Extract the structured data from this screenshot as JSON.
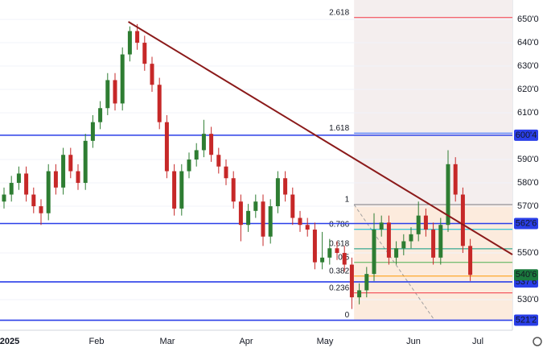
{
  "chart_data": {
    "type": "candlestick",
    "up_color": "#2e7d32",
    "down_color": "#c62828",
    "ylim": [
      516.9,
      658.3
    ],
    "yticks": [
      {
        "value": 530,
        "label": "530'0"
      },
      {
        "value": 550,
        "label": "550'0"
      },
      {
        "value": 570,
        "label": "570'0"
      },
      {
        "value": 580,
        "label": "580'0"
      },
      {
        "value": 590,
        "label": "590'0"
      },
      {
        "value": 610,
        "label": "610'0"
      },
      {
        "value": 620,
        "label": "620'0"
      },
      {
        "value": 630,
        "label": "630'0"
      },
      {
        "value": 640,
        "label": "640'0"
      },
      {
        "value": 650,
        "label": "650'0"
      }
    ],
    "x_labels": [
      "2025",
      "Feb",
      "Mar",
      "Apr",
      "May",
      "Jun",
      "Jul"
    ],
    "candles": [
      [
        572,
        578,
        569,
        575
      ],
      [
        575,
        583,
        572,
        580
      ],
      [
        580,
        587,
        577,
        584
      ],
      [
        584,
        587,
        572,
        575
      ],
      [
        575,
        578,
        567,
        570
      ],
      [
        570,
        573,
        562,
        567
      ],
      [
        567,
        588,
        564,
        585
      ],
      [
        585,
        588,
        575,
        578
      ],
      [
        578,
        595,
        575,
        592
      ],
      [
        592,
        595,
        582,
        585
      ],
      [
        585,
        588,
        577,
        580
      ],
      [
        580,
        601,
        577,
        598
      ],
      [
        598,
        609,
        595,
        606
      ],
      [
        606,
        615,
        603,
        612
      ],
      [
        612,
        627,
        609,
        624
      ],
      [
        624,
        627,
        611,
        614
      ],
      [
        614,
        638,
        611,
        635
      ],
      [
        635,
        647,
        632,
        645
      ],
      [
        645,
        648,
        637,
        640
      ],
      [
        640,
        643,
        628,
        631
      ],
      [
        631,
        634,
        619,
        622
      ],
      [
        622,
        625,
        603,
        606
      ],
      [
        606,
        609,
        582,
        585
      ],
      [
        585,
        588,
        566,
        569
      ],
      [
        569,
        588,
        566,
        585
      ],
      [
        585,
        593,
        582,
        590
      ],
      [
        590,
        597,
        587,
        594
      ],
      [
        594,
        607,
        591,
        601
      ],
      [
        601,
        604,
        589,
        592
      ],
      [
        592,
        595,
        584,
        587
      ],
      [
        587,
        590,
        579,
        582
      ],
      [
        582,
        585,
        569,
        572
      ],
      [
        572,
        575,
        555,
        562
      ],
      [
        562,
        571,
        559,
        568
      ],
      [
        568,
        575,
        565,
        572
      ],
      [
        572,
        575,
        553,
        557
      ],
      [
        557,
        573,
        554,
        570
      ],
      [
        570,
        585,
        567,
        582
      ],
      [
        582,
        585,
        572,
        575
      ],
      [
        575,
        578,
        562,
        565
      ],
      [
        565,
        568,
        559,
        562
      ],
      [
        562,
        565,
        557,
        560
      ],
      [
        560,
        563,
        543,
        546
      ],
      [
        546,
        559,
        543,
        548
      ],
      [
        548,
        556,
        545,
        552
      ],
      [
        552,
        555,
        547,
        550
      ],
      [
        550,
        553,
        542,
        545
      ],
      [
        545,
        548,
        526,
        531
      ],
      [
        531,
        537,
        528,
        534
      ],
      [
        534,
        544,
        531,
        541
      ],
      [
        541,
        567,
        538,
        560
      ],
      [
        560,
        566,
        557,
        563
      ],
      [
        563,
        566,
        545,
        548
      ],
      [
        548,
        555,
        545,
        552
      ],
      [
        552,
        558,
        549,
        555
      ],
      [
        555,
        561,
        552,
        558
      ],
      [
        558,
        572,
        555,
        566
      ],
      [
        566,
        569,
        557,
        560
      ],
      [
        560,
        563,
        545,
        548
      ],
      [
        548,
        565,
        545,
        562
      ],
      [
        562,
        594,
        559,
        588
      ],
      [
        588,
        591,
        572,
        575
      ],
      [
        575,
        578,
        550,
        553
      ],
      [
        553,
        556,
        538,
        540.6
      ]
    ],
    "levels": [
      600.4,
      562.6,
      537.6,
      521.2
    ],
    "level_labels": [
      "600'4",
      "562'6",
      "537'6",
      "521'2"
    ],
    "last_price": 540.6,
    "last_price_label": "540'6",
    "trendline": {
      "x": [
        16.8,
        68.7
      ],
      "y": [
        649,
        549.3
      ]
    },
    "fib": {
      "x_start": 47.3,
      "low": 521.2,
      "high": 570.7,
      "levels": [
        0,
        0.236,
        0.382,
        0.5,
        0.618,
        0.786,
        1,
        1.618,
        2.618
      ]
    }
  }
}
